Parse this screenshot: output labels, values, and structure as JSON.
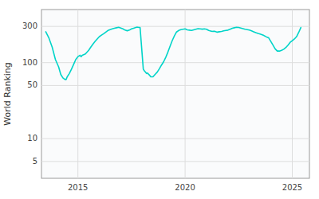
{
  "chart_data": {
    "type": "line",
    "ylabel": "World Ranking",
    "log": "y",
    "grid": true,
    "color": "#00d4c8",
    "xlim": [
      2013.3,
      2025.8
    ],
    "ylim": [
      3,
      500
    ],
    "xticks": [
      2015,
      2020,
      2025
    ],
    "yticks": [
      5,
      10,
      50,
      100,
      300
    ],
    "x": [
      2013.5,
      2013.65,
      2013.8,
      2013.95,
      2014.1,
      2014.2,
      2014.3,
      2014.4,
      2014.45,
      2014.5,
      2014.6,
      2014.7,
      2014.8,
      2014.9,
      2015.0,
      2015.1,
      2015.15,
      2015.2,
      2015.35,
      2015.5,
      2015.6,
      2015.7,
      2015.8,
      2015.9,
      2016.0,
      2016.1,
      2016.2,
      2016.3,
      2016.4,
      2016.5,
      2016.6,
      2016.7,
      2016.8,
      2016.9,
      2017.0,
      2017.1,
      2017.2,
      2017.3,
      2017.4,
      2017.5,
      2017.6,
      2017.7,
      2017.75,
      2017.8,
      2017.85,
      2017.9,
      2018.05,
      2018.1,
      2018.15,
      2018.2,
      2018.25,
      2018.3,
      2018.35,
      2018.4,
      2018.5,
      2018.6,
      2018.7,
      2018.8,
      2018.9,
      2019.0,
      2019.1,
      2019.2,
      2019.3,
      2019.4,
      2019.5,
      2019.6,
      2019.7,
      2019.8,
      2019.9,
      2020.0,
      2020.1,
      2020.2,
      2020.3,
      2020.4,
      2020.5,
      2020.6,
      2020.7,
      2020.8,
      2020.9,
      2021.0,
      2021.05,
      2021.1,
      2021.2,
      2021.3,
      2021.4,
      2021.5,
      2021.6,
      2021.7,
      2021.8,
      2021.9,
      2022.0,
      2022.1,
      2022.2,
      2022.3,
      2022.4,
      2022.5,
      2022.6,
      2022.7,
      2022.8,
      2022.9,
      2023.0,
      2023.1,
      2023.2,
      2023.3,
      2023.4,
      2023.5,
      2023.6,
      2023.65,
      2023.7,
      2023.8,
      2023.9,
      2024.0,
      2024.1,
      2024.2,
      2024.3,
      2024.4,
      2024.5,
      2024.6,
      2024.7,
      2024.8,
      2024.9,
      2025.0,
      2025.1,
      2025.2,
      2025.3,
      2025.4
    ],
    "values": [
      255,
      210,
      160,
      110,
      88,
      70,
      63,
      60,
      60,
      65,
      72,
      82,
      95,
      110,
      120,
      125,
      120,
      125,
      130,
      145,
      160,
      175,
      190,
      205,
      220,
      230,
      240,
      252,
      265,
      272,
      278,
      283,
      288,
      292,
      285,
      278,
      268,
      263,
      268,
      278,
      284,
      290,
      293,
      292,
      291,
      290,
      82,
      78,
      75,
      72,
      73,
      70,
      68,
      65,
      65,
      70,
      75,
      83,
      93,
      103,
      118,
      138,
      165,
      195,
      225,
      253,
      265,
      272,
      275,
      278,
      270,
      268,
      265,
      270,
      275,
      280,
      278,
      276,
      278,
      275,
      270,
      265,
      260,
      258,
      258,
      252,
      255,
      258,
      262,
      265,
      268,
      275,
      283,
      288,
      292,
      290,
      285,
      280,
      275,
      272,
      268,
      262,
      255,
      248,
      242,
      238,
      233,
      230,
      225,
      218,
      212,
      190,
      170,
      152,
      142,
      142,
      145,
      150,
      158,
      170,
      185,
      195,
      205,
      220,
      250,
      290
    ]
  }
}
